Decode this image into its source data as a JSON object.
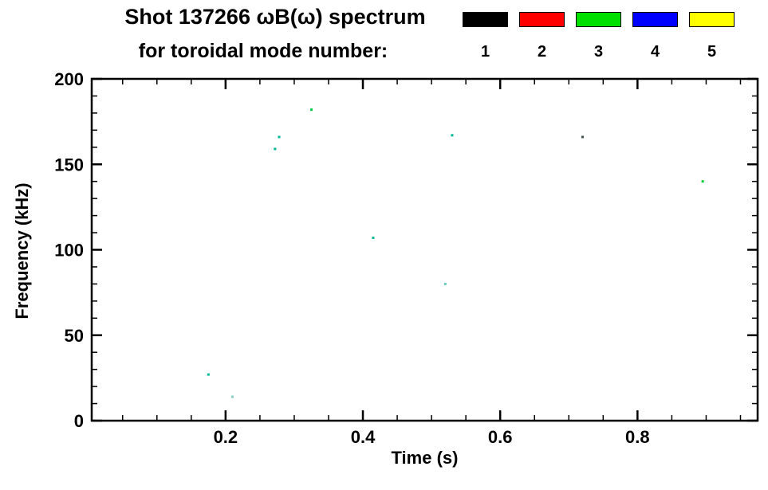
{
  "title": {
    "line1": "Shot 137266 ωB(ω) spectrum",
    "line2": "for toroidal mode number:"
  },
  "legend": {
    "entries": [
      {
        "label": "1",
        "color": "#000000"
      },
      {
        "label": "2",
        "color": "#ff0000"
      },
      {
        "label": "3",
        "color": "#00e000"
      },
      {
        "label": "4",
        "color": "#0000ff"
      },
      {
        "label": "5",
        "color": "#ffff00"
      }
    ]
  },
  "chart_data": {
    "type": "scatter",
    "title": "Shot 137266 ωB(ω) spectrum for toroidal mode number 1-5",
    "xlabel": "Time (s)",
    "ylabel": "Frequency (kHz)",
    "xlim": [
      0.005,
      0.975
    ],
    "ylim": [
      0,
      200
    ],
    "x_ticks": [
      0.2,
      0.4,
      0.6,
      0.8
    ],
    "x_tick_labels": [
      "0.2",
      "0.4",
      "0.6",
      "0.8"
    ],
    "y_ticks": [
      0,
      50,
      100,
      150,
      200
    ],
    "y_tick_labels": [
      "0",
      "50",
      "100",
      "150",
      "200"
    ],
    "x_minor_step": 0.05,
    "y_minor_step": 10,
    "grid": false,
    "legend_position": "top-right",
    "points": [
      {
        "t": 0.325,
        "f": 182,
        "mode": 3,
        "color": "#00cc44"
      },
      {
        "t": 0.278,
        "f": 166,
        "mode": 3,
        "color": "#00b898"
      },
      {
        "t": 0.272,
        "f": 159,
        "mode": 3,
        "color": "#00b898"
      },
      {
        "t": 0.53,
        "f": 167,
        "mode": 3,
        "color": "#00b898"
      },
      {
        "t": 0.72,
        "f": 166,
        "mode": 1,
        "color": "#445550"
      },
      {
        "t": 0.895,
        "f": 140,
        "mode": 3,
        "color": "#00cc33"
      },
      {
        "t": 0.415,
        "f": 107,
        "mode": 3,
        "color": "#00b898"
      },
      {
        "t": 0.52,
        "f": 80,
        "mode": 3,
        "color": "#66ccbb"
      },
      {
        "t": 0.175,
        "f": 27,
        "mode": 3,
        "color": "#00b898"
      },
      {
        "t": 0.21,
        "f": 14,
        "mode": 3,
        "color": "#88ccc4"
      }
    ]
  }
}
